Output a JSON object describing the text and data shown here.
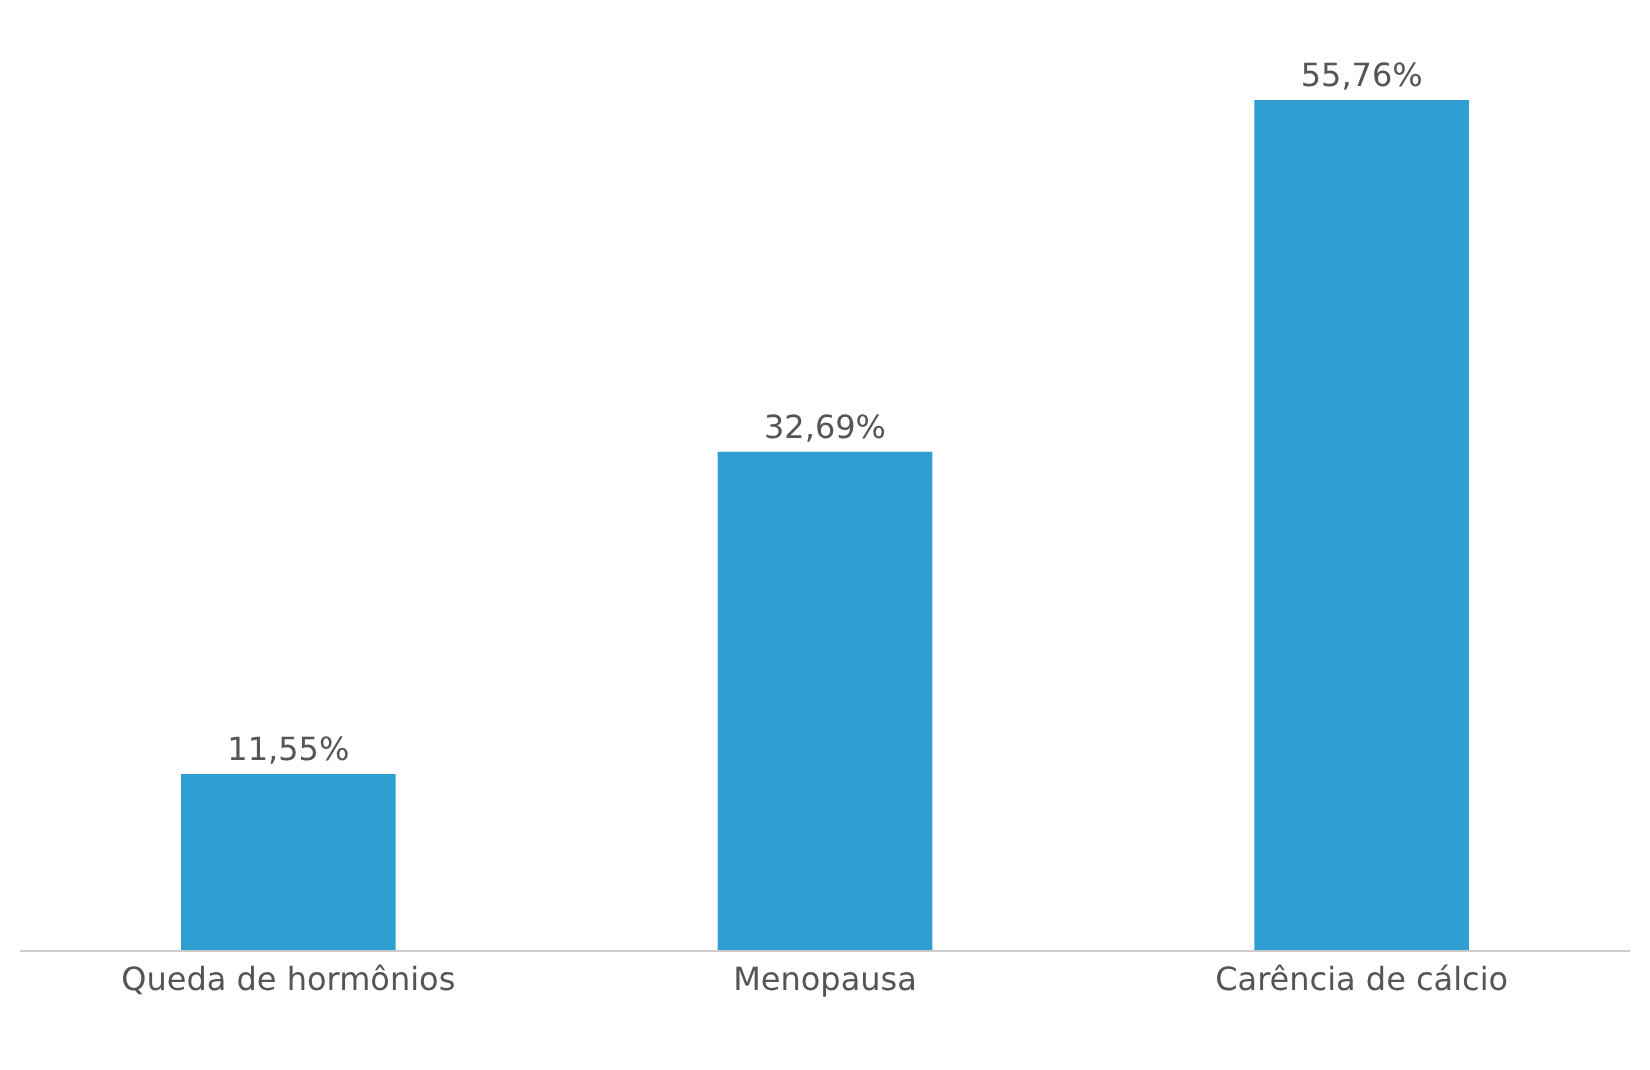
{
  "chart_data": {
    "type": "bar",
    "categories": [
      "Queda de hormônios",
      "Menopausa",
      "Carência de cálcio"
    ],
    "values": [
      11.55,
      32.69,
      55.76
    ],
    "value_labels": [
      "11,55%",
      "32,69%",
      "55,76%"
    ],
    "color": "#2e9fd0",
    "legend": false
  }
}
